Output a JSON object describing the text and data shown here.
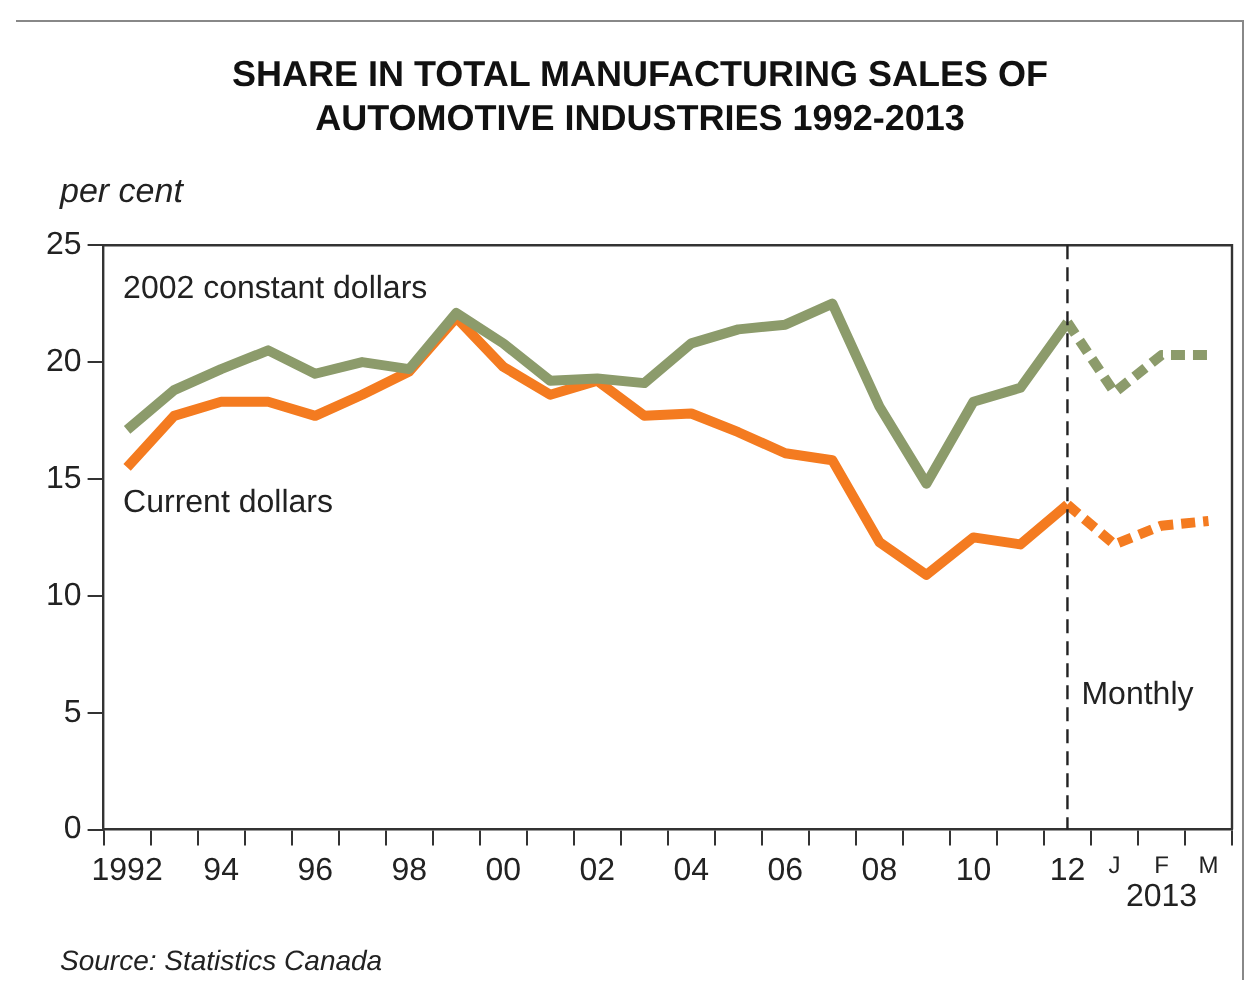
{
  "chart_data": {
    "type": "line",
    "title": "SHARE IN TOTAL MANUFACTURING SALES OF AUTOMOTIVE INDUSTRIES 1992-2013",
    "ylabel": "per cent",
    "categories": [
      "1992",
      null,
      "94",
      null,
      "96",
      null,
      "98",
      null,
      "00",
      null,
      "02",
      null,
      "04",
      null,
      "06",
      null,
      "08",
      null,
      "10",
      null,
      "12",
      "J",
      "F",
      "M"
    ],
    "series": [
      {
        "name": "2002 constant dollars",
        "color": "#8c9b6b",
        "line_style": "solid",
        "values": [
          17.1,
          18.8,
          19.7,
          20.5,
          19.5,
          20.0,
          19.7,
          22.1,
          20.8,
          19.2,
          19.3,
          19.1,
          20.8,
          21.4,
          21.6,
          22.5,
          18.1,
          14.8,
          18.3,
          18.9,
          21.7,
          null,
          null,
          null
        ]
      },
      {
        "name": "Current dollars",
        "color": "#f47b20",
        "line_style": "solid",
        "values": [
          15.5,
          17.7,
          18.3,
          18.3,
          17.7,
          18.6,
          19.6,
          21.9,
          19.8,
          18.6,
          19.2,
          17.7,
          17.8,
          17.0,
          16.1,
          15.8,
          12.3,
          10.9,
          12.5,
          12.2,
          13.9,
          null,
          null,
          null
        ]
      },
      {
        "color": "#8c9b6b",
        "line_style": "dashed",
        "values": [
          null,
          null,
          null,
          null,
          null,
          null,
          null,
          null,
          null,
          null,
          null,
          null,
          null,
          null,
          null,
          null,
          null,
          null,
          null,
          null,
          21.7,
          18.7,
          20.3,
          20.3
        ]
      },
      {
        "color": "#f47b20",
        "line_style": "dashed",
        "values": [
          null,
          null,
          null,
          null,
          null,
          null,
          null,
          null,
          null,
          null,
          null,
          null,
          null,
          null,
          null,
          null,
          null,
          null,
          null,
          null,
          13.9,
          12.2,
          13.0,
          13.2
        ]
      }
    ],
    "ylim": [
      0,
      25
    ],
    "yticks": [
      0,
      5,
      10,
      15,
      20,
      25
    ],
    "grid": false,
    "legend": false,
    "marker": "none",
    "ref_lines": [
      {
        "axis": "x",
        "value": "12",
        "label": "Monthly",
        "color": "#222222",
        "line_style": "dashed"
      }
    ],
    "annotations": [
      "2013",
      "Source: Statistics Canada"
    ]
  }
}
